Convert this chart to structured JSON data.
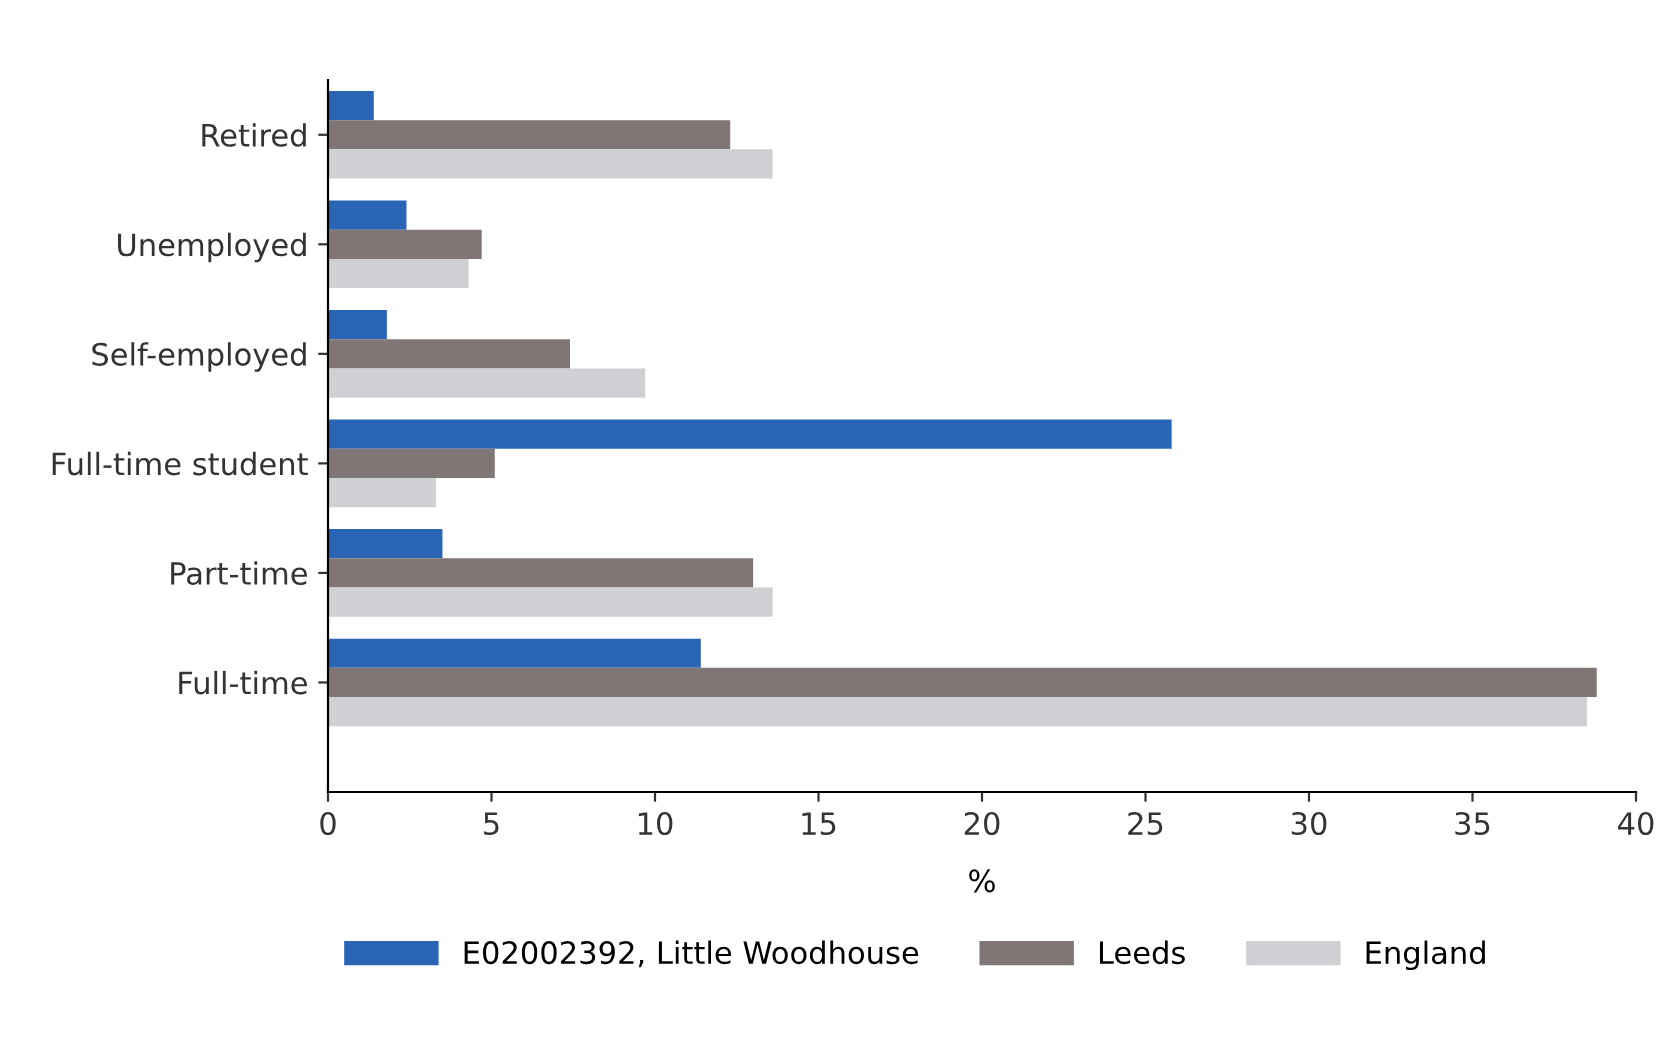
{
  "chart_data": {
    "type": "bar",
    "orientation": "horizontal",
    "xlabel": "%",
    "categories": [
      "Retired",
      "Unemployed",
      "Self-employed",
      "Full-time student",
      "Part-time",
      "Full-time"
    ],
    "series": [
      {
        "name": "E02002392, Little Woodhouse",
        "color": "#2a65b5",
        "values": [
          1.4,
          2.4,
          1.8,
          25.8,
          3.5,
          11.4
        ]
      },
      {
        "name": "Leeds",
        "color": "#7f7675",
        "values": [
          12.3,
          4.7,
          7.4,
          5.1,
          13.0,
          38.8
        ]
      },
      {
        "name": "England",
        "color": "#d0cfd3",
        "values": [
          13.6,
          4.3,
          9.7,
          3.3,
          13.6,
          38.5
        ]
      }
    ],
    "xlim": [
      0,
      40
    ],
    "xticks": [
      0,
      5,
      10,
      15,
      20,
      25,
      30,
      35,
      40
    ],
    "grid": false,
    "legend": "bottom"
  }
}
